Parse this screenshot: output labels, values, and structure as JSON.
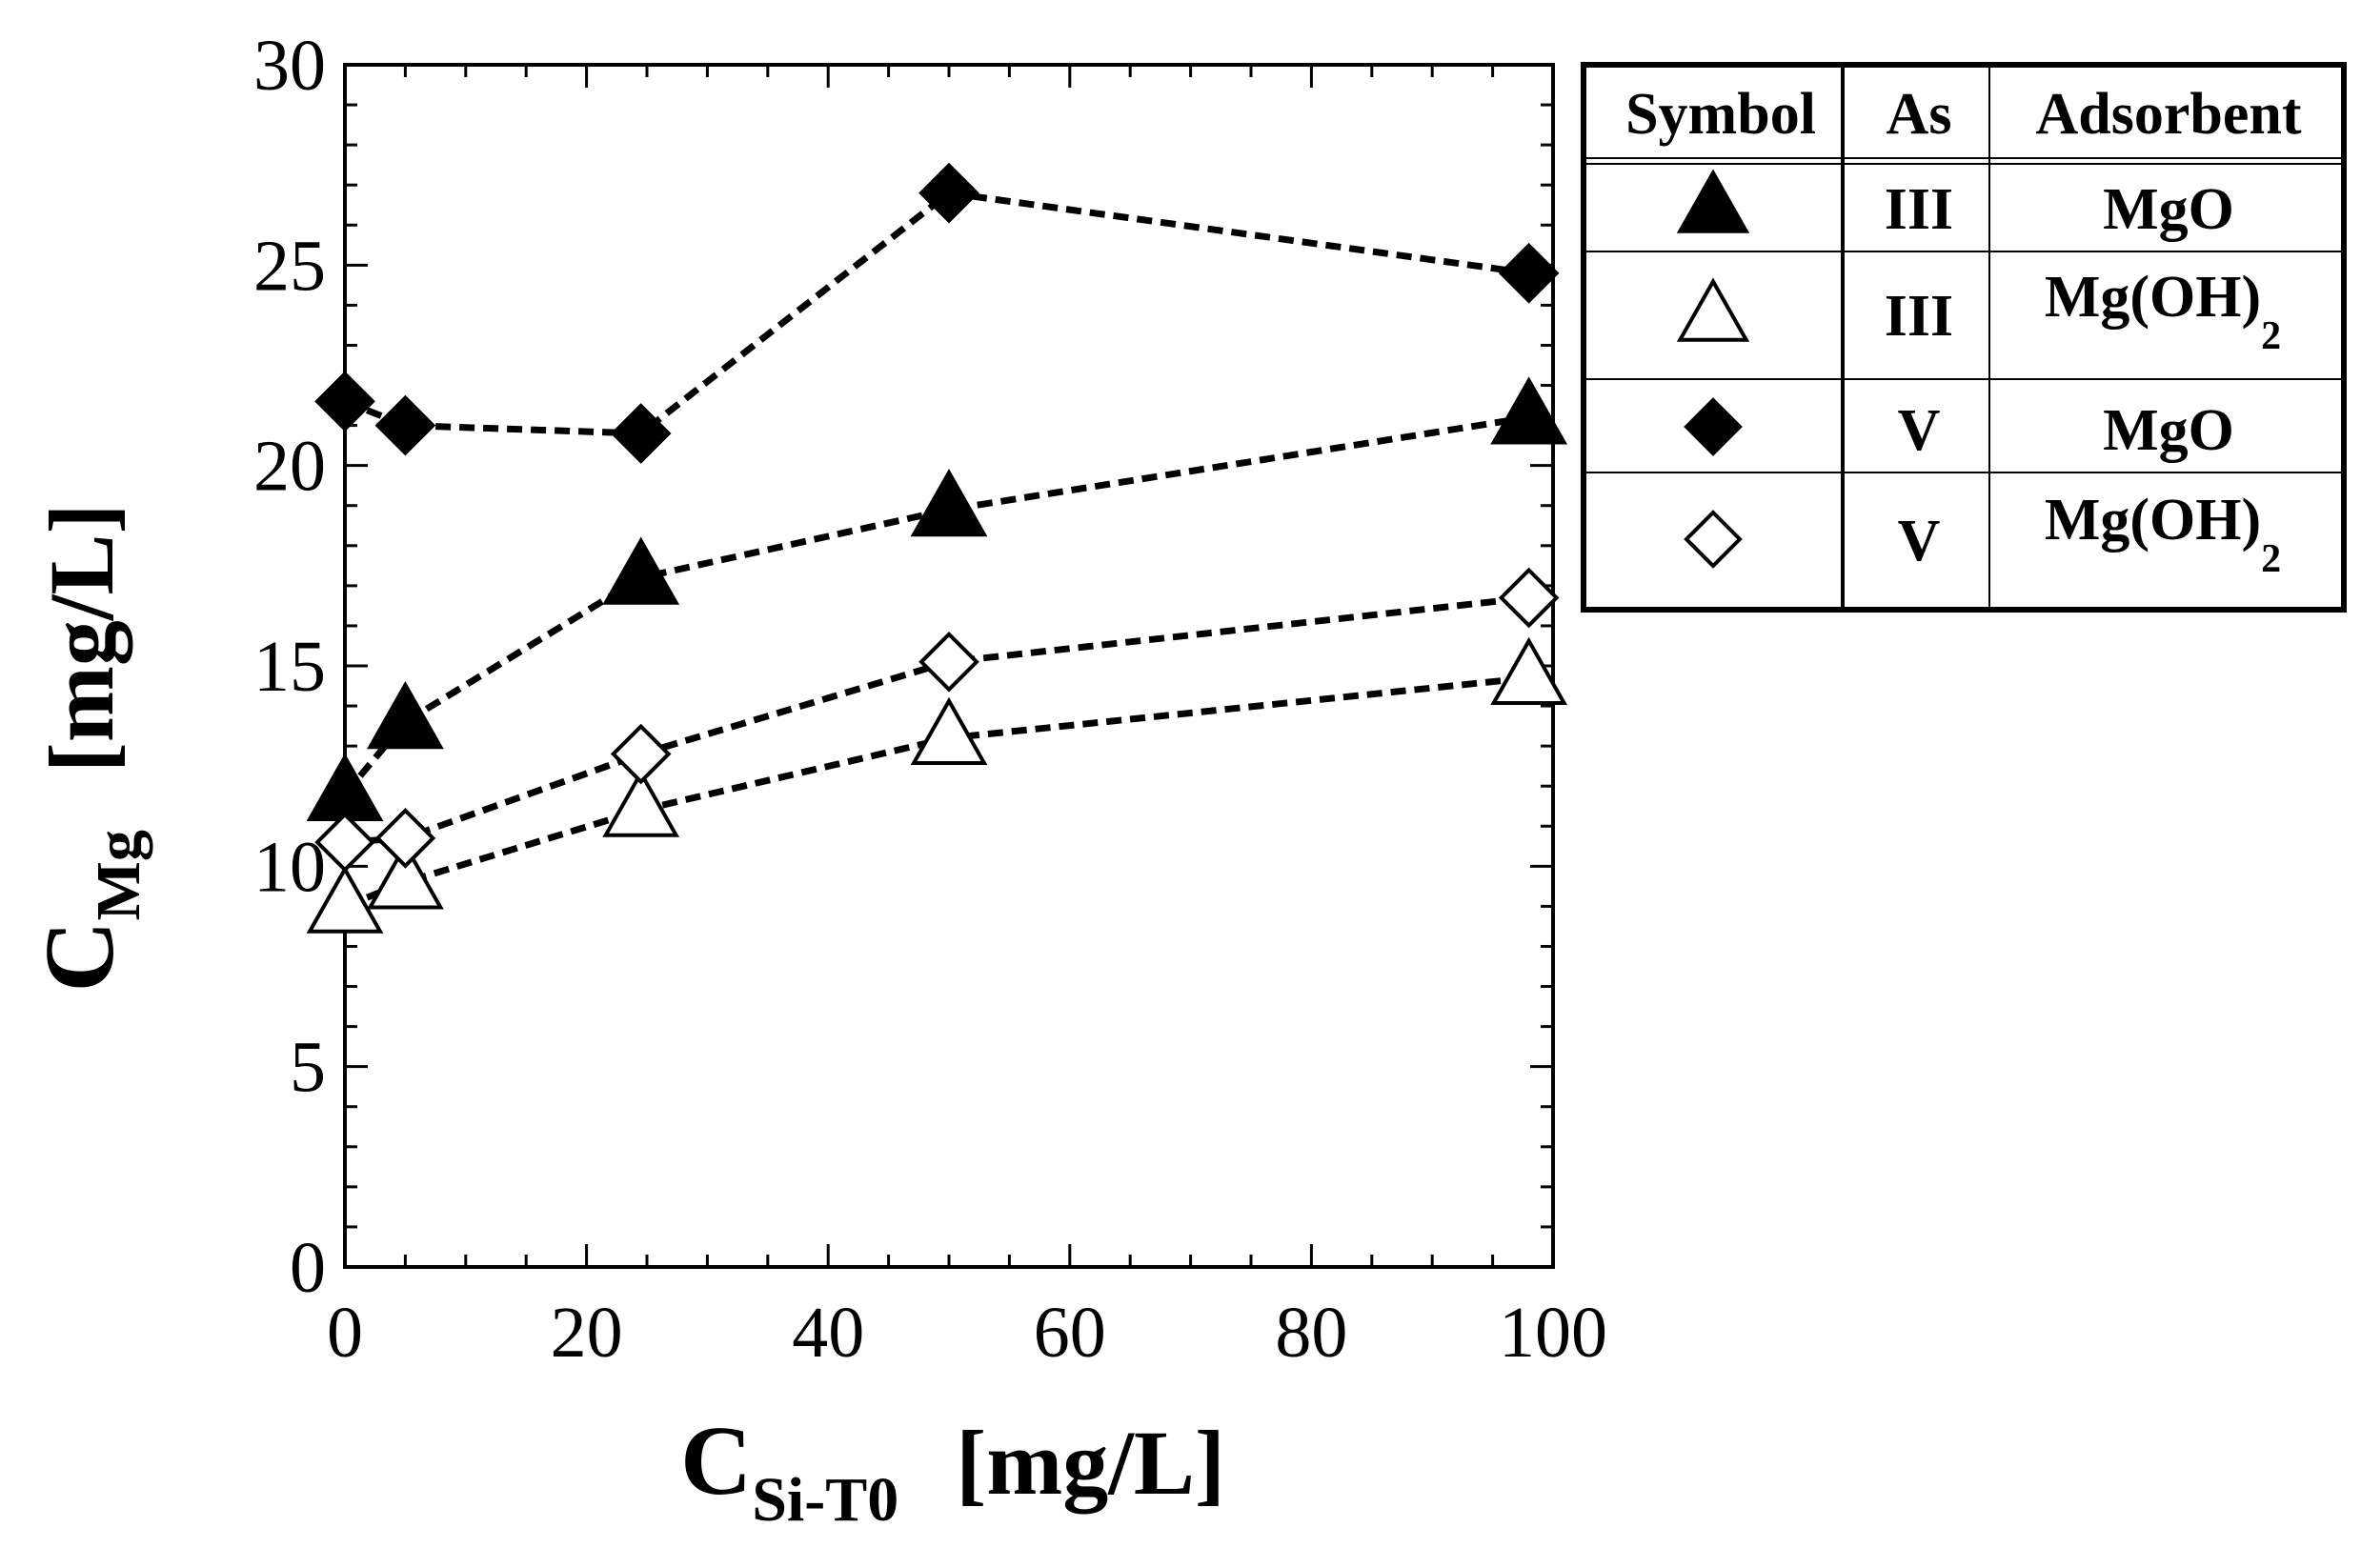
{
  "chart_data": {
    "type": "scatter",
    "title": "",
    "xlabel": {
      "main": "C",
      "sub": "Si-T0",
      "unit": "[mg/L]"
    },
    "ylabel": {
      "main": "C",
      "sub": "Mg",
      "unit": "[mg/L]"
    },
    "xlim": [
      0,
      100
    ],
    "ylim": [
      0,
      30
    ],
    "xticks": [
      0,
      20,
      40,
      60,
      80,
      100
    ],
    "yticks": [
      0,
      5,
      10,
      15,
      20,
      25,
      30
    ],
    "xtick_labels": [
      "0",
      "20",
      "40",
      "60",
      "80",
      "100"
    ],
    "ytick_labels": [
      "0",
      "5",
      "10",
      "15",
      "20",
      "25",
      "30"
    ],
    "grid": false,
    "line_style": "dashed",
    "series": [
      {
        "name": "As III / MgO",
        "marker": "triangle",
        "filled": true,
        "x": [
          0,
          5,
          24.5,
          50,
          98
        ],
        "y": [
          11.8,
          13.6,
          17.2,
          18.9,
          21.2
        ]
      },
      {
        "name": "As III / Mg(OH)2",
        "marker": "triangle",
        "filled": false,
        "x": [
          0,
          5,
          24.5,
          50,
          98
        ],
        "y": [
          9.0,
          9.6,
          11.4,
          13.2,
          14.7
        ]
      },
      {
        "name": "As V / MgO",
        "marker": "diamond",
        "filled": true,
        "x": [
          0,
          5,
          24.5,
          50,
          98
        ],
        "y": [
          21.6,
          21.0,
          20.8,
          26.8,
          24.8
        ]
      },
      {
        "name": "As V / Mg(OH)2",
        "marker": "diamond",
        "filled": false,
        "x": [
          0,
          5,
          24.5,
          50,
          98
        ],
        "y": [
          10.6,
          10.7,
          12.8,
          15.1,
          16.7
        ]
      }
    ],
    "legend": {
      "placement": "top-right",
      "headers": [
        "Symbol",
        "As",
        "Adsorbent"
      ],
      "rows": [
        {
          "marker": "triangle",
          "filled": true,
          "as": "III",
          "adsorbent": "MgO",
          "adsorbent_sub": ""
        },
        {
          "marker": "triangle",
          "filled": false,
          "as": "III",
          "adsorbent": "Mg(OH)",
          "adsorbent_sub": "2"
        },
        {
          "marker": "diamond",
          "filled": true,
          "as": "V",
          "adsorbent": "MgO",
          "adsorbent_sub": ""
        },
        {
          "marker": "diamond",
          "filled": false,
          "as": "V",
          "adsorbent": "Mg(OH)",
          "adsorbent_sub": "2"
        }
      ]
    }
  }
}
